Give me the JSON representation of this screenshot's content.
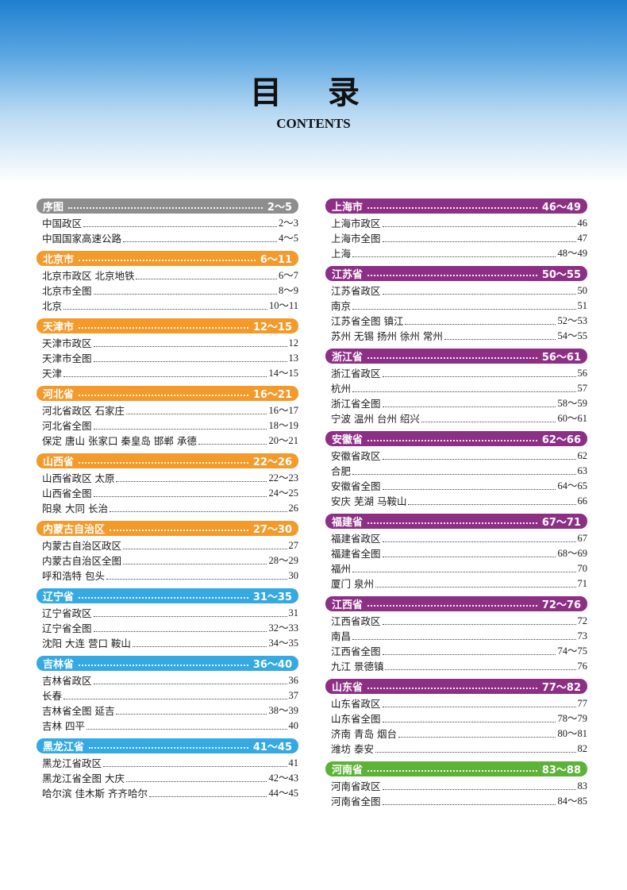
{
  "header": {
    "title": "目 录",
    "subtitle": "CONTENTS"
  },
  "colors": {
    "gray": "#8e8e8e",
    "orange": "#f39a2b",
    "cyan": "#35a9e1",
    "purple": "#8e2f86",
    "green": "#5cb338"
  },
  "left": [
    {
      "title": "序图",
      "range": "2～5",
      "color": "gray",
      "items": [
        {
          "label": "中国政区",
          "page": "2～3"
        },
        {
          "label": "中国国家高速公路",
          "page": "4～5"
        }
      ]
    },
    {
      "title": "北京市",
      "range": "6～11",
      "color": "orange",
      "items": [
        {
          "label": "北京市政区 北京地铁",
          "page": "6～7"
        },
        {
          "label": "北京市全图",
          "page": "8～9"
        },
        {
          "label": "北京",
          "page": "10～11"
        }
      ]
    },
    {
      "title": "天津市",
      "range": "12～15",
      "color": "orange",
      "items": [
        {
          "label": "天津市政区",
          "page": "12"
        },
        {
          "label": "天津市全图",
          "page": "13"
        },
        {
          "label": "天津",
          "page": "14～15"
        }
      ]
    },
    {
      "title": "河北省",
      "range": "16～21",
      "color": "orange",
      "items": [
        {
          "label": "河北省政区 石家庄",
          "page": "16～17"
        },
        {
          "label": "河北省全图",
          "page": "18～19"
        },
        {
          "label": "保定 唐山 张家口 秦皇岛 邯郸 承德",
          "page": "20～21"
        }
      ]
    },
    {
      "title": "山西省",
      "range": "22～26",
      "color": "orange",
      "items": [
        {
          "label": "山西省政区 太原",
          "page": "22～23"
        },
        {
          "label": "山西省全图",
          "page": "24～25"
        },
        {
          "label": "阳泉 大同 长治",
          "page": "26"
        }
      ]
    },
    {
      "title": "内蒙古自治区",
      "range": "27～30",
      "color": "orange",
      "items": [
        {
          "label": "内蒙古自治区政区",
          "page": "27"
        },
        {
          "label": "内蒙古自治区全图",
          "page": "28～29"
        },
        {
          "label": "呼和浩特 包头",
          "page": "30"
        }
      ]
    },
    {
      "title": "辽宁省",
      "range": "31～35",
      "color": "cyan",
      "items": [
        {
          "label": "辽宁省政区",
          "page": "31"
        },
        {
          "label": "辽宁省全图",
          "page": "32～33"
        },
        {
          "label": "沈阳 大连 营口 鞍山",
          "page": "34～35"
        }
      ]
    },
    {
      "title": "吉林省",
      "range": "36～40",
      "color": "cyan",
      "items": [
        {
          "label": "吉林省政区",
          "page": "36"
        },
        {
          "label": "长春",
          "page": "37"
        },
        {
          "label": "吉林省全图 延吉",
          "page": "38～39"
        },
        {
          "label": "吉林 四平",
          "page": "40"
        }
      ]
    },
    {
      "title": "黑龙江省",
      "range": "41～45",
      "color": "cyan",
      "items": [
        {
          "label": "黑龙江省政区",
          "page": "41"
        },
        {
          "label": "黑龙江省全图 大庆",
          "page": "42～43"
        },
        {
          "label": "哈尔滨 佳木斯 齐齐哈尔",
          "page": "44～45"
        }
      ]
    }
  ],
  "right": [
    {
      "title": "上海市",
      "range": "46～49",
      "color": "purple",
      "items": [
        {
          "label": "上海市政区",
          "page": "46"
        },
        {
          "label": "上海市全图",
          "page": "47"
        },
        {
          "label": "上海",
          "page": "48～49"
        }
      ]
    },
    {
      "title": "江苏省",
      "range": "50～55",
      "color": "purple",
      "items": [
        {
          "label": "江苏省政区",
          "page": "50"
        },
        {
          "label": "南京",
          "page": "51"
        },
        {
          "label": "江苏省全图 镇江",
          "page": "52～53"
        },
        {
          "label": "苏州 无锡 扬州 徐州 常州",
          "page": "54～55"
        }
      ]
    },
    {
      "title": "浙江省",
      "range": "56～61",
      "color": "purple",
      "items": [
        {
          "label": "浙江省政区",
          "page": "56"
        },
        {
          "label": "杭州",
          "page": "57"
        },
        {
          "label": "浙江省全图",
          "page": "58～59"
        },
        {
          "label": "宁波 温州 台州 绍兴",
          "page": "60～61"
        }
      ]
    },
    {
      "title": "安徽省",
      "range": "62～66",
      "color": "purple",
      "items": [
        {
          "label": "安徽省政区",
          "page": "62"
        },
        {
          "label": "合肥",
          "page": "63"
        },
        {
          "label": "安徽省全图",
          "page": "64～65"
        },
        {
          "label": "安庆 芜湖 马鞍山",
          "page": "66"
        }
      ]
    },
    {
      "title": "福建省",
      "range": "67～71",
      "color": "purple",
      "items": [
        {
          "label": "福建省政区",
          "page": "67"
        },
        {
          "label": "福建省全图",
          "page": "68～69"
        },
        {
          "label": "福州",
          "page": "70"
        },
        {
          "label": "厦门 泉州",
          "page": "71"
        }
      ]
    },
    {
      "title": "江西省",
      "range": "72～76",
      "color": "purple",
      "items": [
        {
          "label": "江西省政区",
          "page": "72"
        },
        {
          "label": "南昌",
          "page": "73"
        },
        {
          "label": "江西省全图",
          "page": "74～75"
        },
        {
          "label": "九江 景德镇",
          "page": "76"
        }
      ]
    },
    {
      "title": "山东省",
      "range": "77～82",
      "color": "purple",
      "items": [
        {
          "label": "山东省政区",
          "page": "77"
        },
        {
          "label": "山东省全图",
          "page": "78～79"
        },
        {
          "label": "济南 青岛 烟台",
          "page": "80～81"
        },
        {
          "label": "潍坊 泰安",
          "page": "82"
        }
      ]
    },
    {
      "title": "河南省",
      "range": "83～88",
      "color": "green",
      "items": [
        {
          "label": "河南省政区",
          "page": "83"
        },
        {
          "label": "河南省全图",
          "page": "84～85"
        }
      ]
    }
  ]
}
